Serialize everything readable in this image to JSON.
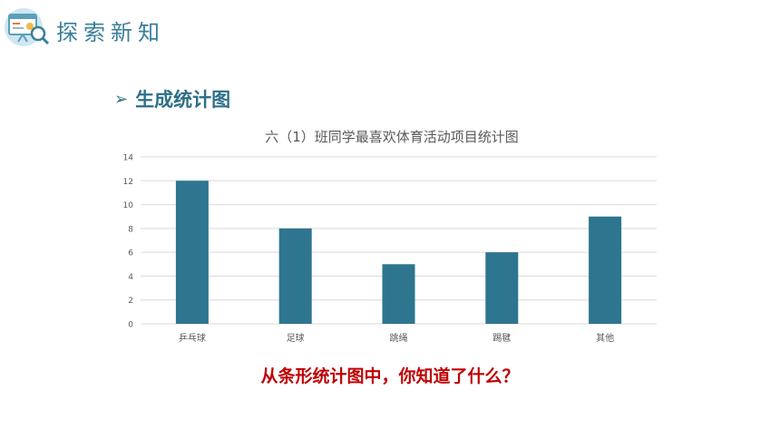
{
  "header": {
    "title": "探索新知",
    "logo_icon": "presentation-board-icon"
  },
  "section": {
    "bullet_icon": "arrow-bullet-icon",
    "title": "生成统计图"
  },
  "chart_data": {
    "type": "bar",
    "title": "六（1）班同学最喜欢体育活动项目统计图",
    "categories": [
      "乒乓球",
      "足球",
      "跳绳",
      "踢毽",
      "其他"
    ],
    "values": [
      12,
      8,
      5,
      6,
      9
    ],
    "yticks": [
      0,
      2,
      4,
      6,
      8,
      10,
      12,
      14
    ],
    "ylim": [
      0,
      14
    ],
    "xlabel": "",
    "ylabel": "",
    "grid": true,
    "bar_color": "#2e7590",
    "grid_color": "#d9d9d9"
  },
  "question": "从条形统计图中，你知道了什么？"
}
